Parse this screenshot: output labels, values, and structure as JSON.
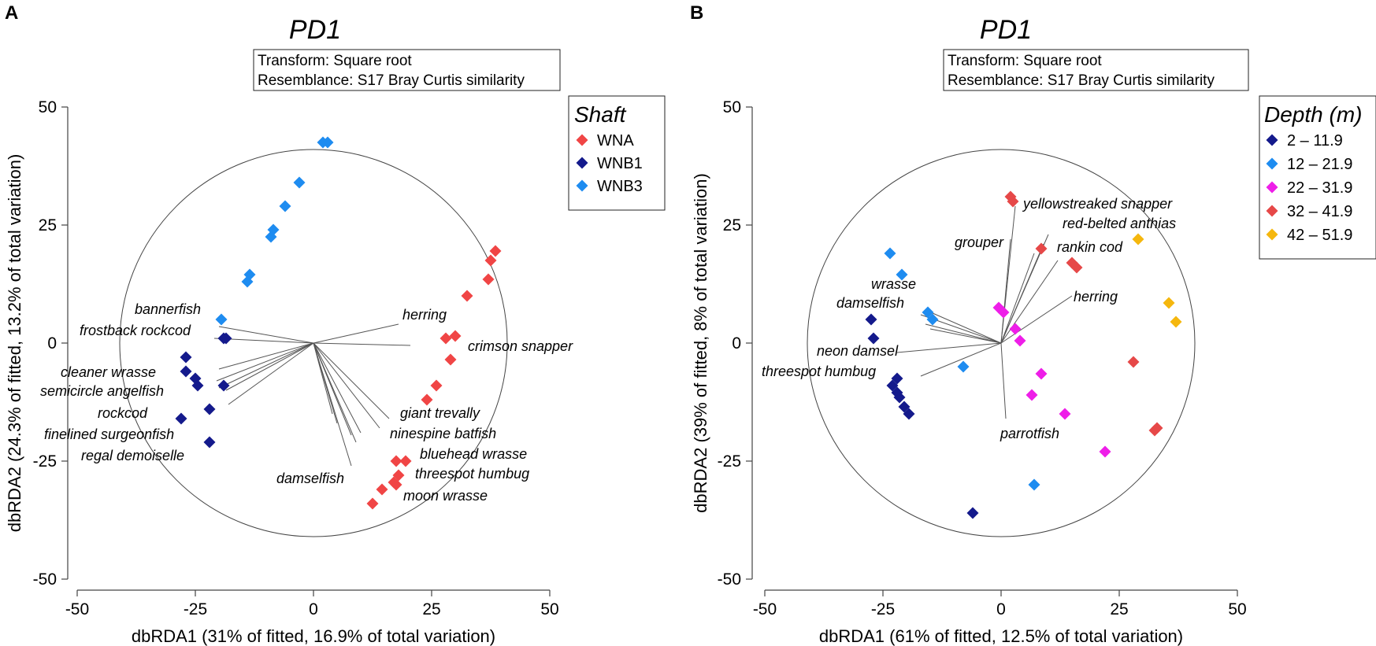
{
  "chart_data": [
    {
      "type": "scatter",
      "panel_letter": "A",
      "title": "PD1",
      "info_box": [
        "Transform: Square root",
        "Resemblance: S17 Bray Curtis similarity"
      ],
      "xlabel": "dbRDA1 (31% of fitted, 16.9% of total variation)",
      "ylabel": "dbRDA2 (24.3% of fitted, 13.2% of total variation)",
      "xlim": [
        -50,
        50
      ],
      "ylim": [
        -50,
        50
      ],
      "xticks": [
        "-50",
        "-25",
        "0",
        "25",
        "50"
      ],
      "yticks": [
        "50",
        "25",
        "0",
        "-25",
        "-50"
      ],
      "circle_radius": 41,
      "legend_title": "Shaft",
      "series": [
        {
          "name": "WNA",
          "color": "#f04545",
          "points": [
            [
              38.5,
              19.5
            ],
            [
              37.5,
              17.5
            ],
            [
              37,
              13.5
            ],
            [
              32.5,
              10
            ],
            [
              30,
              1.5
            ],
            [
              28,
              1
            ],
            [
              29,
              -3.5
            ],
            [
              26,
              -9
            ],
            [
              24,
              -12
            ],
            [
              19.5,
              -25
            ],
            [
              17.5,
              -25
            ],
            [
              18,
              -28
            ],
            [
              17,
              -29.5
            ],
            [
              17.5,
              -30
            ],
            [
              14.5,
              -31
            ],
            [
              12.5,
              -34
            ]
          ]
        },
        {
          "name": "WNB1",
          "color": "#141a8c",
          "points": [
            [
              -19,
              1
            ],
            [
              -18.5,
              1
            ],
            [
              -27,
              -3
            ],
            [
              -27,
              -6
            ],
            [
              -25,
              -7.5
            ],
            [
              -24.5,
              -9
            ],
            [
              -19,
              -9
            ],
            [
              -22,
              -14
            ],
            [
              -28,
              -16
            ],
            [
              -22,
              -21
            ]
          ]
        },
        {
          "name": "WNB3",
          "color": "#1e8cf0",
          "points": [
            [
              2,
              42.5
            ],
            [
              3,
              42.5
            ],
            [
              -3,
              34
            ],
            [
              -6,
              29
            ],
            [
              -8.5,
              24
            ],
            [
              -9,
              22.5
            ],
            [
              -13.5,
              14.5
            ],
            [
              -14,
              13
            ],
            [
              -19.5,
              5
            ]
          ]
        }
      ],
      "vectors": [
        {
          "label": "bannerfish",
          "end": [
            -20,
            3.5
          ]
        },
        {
          "label": "frostback rockcod",
          "end": [
            -21,
            1
          ]
        },
        {
          "label": "herring",
          "end": [
            18,
            4
          ]
        },
        {
          "label": "crimson snapper",
          "end": [
            20.5,
            -0.5
          ]
        },
        {
          "label": "cleaner wrasse",
          "end": [
            -20,
            -5.5
          ]
        },
        {
          "label": "semicircle angelfish",
          "end": [
            -20.5,
            -8
          ]
        },
        {
          "label": "rockcod",
          "end": [
            -20,
            -9.5
          ]
        },
        {
          "label": "finelined surgeonfish",
          "end": [
            -18.5,
            -10
          ]
        },
        {
          "label": "regal demoiselle",
          "end": [
            -18,
            -13
          ]
        },
        {
          "label": "giant trevally",
          "end": [
            16,
            -16
          ]
        },
        {
          "label": "ninespine batfish",
          "end": [
            14,
            -18
          ]
        },
        {
          "label": "bluehead wrasse",
          "end": [
            10,
            -19
          ]
        },
        {
          "label": "threespot humbug",
          "end": [
            9,
            -21
          ]
        },
        {
          "label": "moon wrasse",
          "end": [
            8,
            -19.5
          ]
        },
        {
          "label": "damselfish",
          "end": [
            8,
            -26
          ]
        },
        {
          "label": "",
          "end": [
            5,
            -17
          ]
        },
        {
          "label": "",
          "end": [
            4,
            -15
          ]
        }
      ],
      "labels": [
        "bannerfish",
        "frostback rockcod",
        "herring",
        "crimson snapper",
        "cleaner wrasse",
        "semicircle angelfish",
        "rockcod",
        "finelined surgeonfish",
        "regal demoiselle",
        "giant trevally",
        "ninespine batfish",
        "bluehead wrasse",
        "threespot humbug",
        "moon wrasse",
        "damselfish"
      ]
    },
    {
      "type": "scatter",
      "panel_letter": "B",
      "title": "PD1",
      "info_box": [
        "Transform: Square root",
        "Resemblance: S17 Bray Curtis similarity"
      ],
      "xlabel": "dbRDA1 (61% of fitted, 12.5% of total variation)",
      "ylabel": "dbRDA2 (39% of fitted, 8% of total variation)",
      "xlim": [
        -50,
        50
      ],
      "ylim": [
        -50,
        50
      ],
      "xticks": [
        "-50",
        "-25",
        "0",
        "25",
        "50"
      ],
      "yticks": [
        "50",
        "25",
        "0",
        "-25",
        "-50"
      ],
      "circle_radius": 41,
      "legend_title": "Depth (m)",
      "series": [
        {
          "name": "2 – 11.9",
          "color": "#141a8c",
          "points": [
            [
              -27.5,
              5
            ],
            [
              -27,
              1
            ],
            [
              -23,
              -9
            ],
            [
              -22,
              -7.5
            ],
            [
              -22,
              -10.5
            ],
            [
              -21.5,
              -11.5
            ],
            [
              -20.5,
              -13.5
            ],
            [
              -19.5,
              -15
            ],
            [
              -6,
              -36
            ]
          ]
        },
        {
          "name": "12 – 21.9",
          "color": "#1e8cf0",
          "points": [
            [
              -23.5,
              19
            ],
            [
              -21,
              14.5
            ],
            [
              -15.5,
              6.5
            ],
            [
              -14.5,
              5
            ],
            [
              -8,
              -5
            ],
            [
              7,
              -30
            ]
          ]
        },
        {
          "name": "22 – 31.9",
          "color": "#ee1ee8",
          "points": [
            [
              -0.5,
              7.5
            ],
            [
              0.5,
              6.5
            ],
            [
              3,
              3
            ],
            [
              4,
              0.5
            ],
            [
              8.5,
              -6.5
            ],
            [
              6.5,
              -11
            ],
            [
              13.5,
              -15
            ],
            [
              22,
              -23
            ]
          ]
        },
        {
          "name": "32 – 41.9",
          "color": "#e64848",
          "points": [
            [
              2,
              31
            ],
            [
              2.5,
              30
            ],
            [
              8.5,
              20
            ],
            [
              15,
              17
            ],
            [
              16,
              16
            ],
            [
              28,
              -4
            ],
            [
              33,
              -18
            ],
            [
              32.5,
              -18.5
            ]
          ]
        },
        {
          "name": "42 – 51.9",
          "color": "#f5b70e",
          "points": [
            [
              29,
              22
            ],
            [
              35.5,
              8.5
            ],
            [
              37,
              4.5
            ]
          ]
        }
      ],
      "vectors": [
        {
          "label": "yellowstreaked snapper",
          "end": [
            3,
            29
          ]
        },
        {
          "label": "red-belted anthias",
          "end": [
            10,
            23
          ]
        },
        {
          "label": "grouper",
          "end": [
            2,
            22
          ]
        },
        {
          "label": "rankin cod",
          "end": [
            12,
            17.5
          ]
        },
        {
          "label": "herring",
          "end": [
            15,
            10
          ]
        },
        {
          "label": "wrasse",
          "end": [
            -16,
            7
          ]
        },
        {
          "label": "damselfish",
          "end": [
            -17,
            6
          ]
        },
        {
          "label": "neon damsel",
          "end": [
            -22,
            -2
          ]
        },
        {
          "label": "threespot humbug",
          "end": [
            -17,
            -7
          ]
        },
        {
          "label": "parrotfish",
          "end": [
            1,
            -16
          ]
        },
        {
          "label": "",
          "end": [
            -16,
            4
          ]
        },
        {
          "label": "",
          "end": [
            -15,
            3
          ]
        },
        {
          "label": "",
          "end": [
            9,
            21
          ]
        },
        {
          "label": "",
          "end": [
            7,
            19
          ]
        }
      ],
      "labels": [
        "yellowstreaked snapper",
        "red-belted anthias",
        "grouper",
        "rankin cod",
        "herring",
        "wrasse",
        "damselfish",
        "neon damsel",
        "threespot humbug",
        "parrotfish"
      ]
    }
  ]
}
